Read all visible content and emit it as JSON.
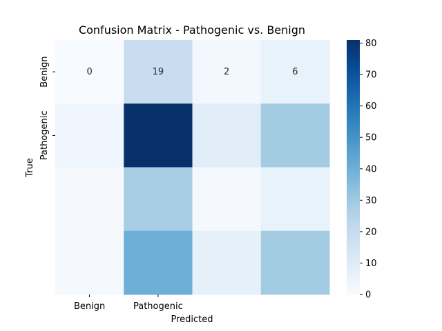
{
  "chart_data": {
    "type": "heatmap",
    "title": "Confusion Matrix - Pathogenic vs. Benign",
    "xlabel": "Predicted",
    "ylabel": "True",
    "x_tick_labels": [
      "Benign",
      "Pathogenic",
      "",
      ""
    ],
    "y_tick_labels": [
      "Benign",
      "Pathogenic",
      "",
      ""
    ],
    "values": [
      [
        0,
        19,
        2,
        6
      ],
      [
        3,
        81,
        9,
        29
      ],
      [
        1,
        28,
        1,
        6
      ],
      [
        1,
        40,
        7,
        29
      ]
    ],
    "annotations": [
      [
        "0",
        "19",
        "2",
        "6"
      ],
      [
        null,
        null,
        null,
        null
      ],
      [
        null,
        null,
        null,
        null
      ],
      [
        null,
        null,
        null,
        null
      ]
    ],
    "colormap": "Blues",
    "color_range": [
      0,
      81
    ],
    "colorbar_ticks": [
      0,
      10,
      20,
      30,
      40,
      50,
      60,
      70,
      80
    ],
    "colors": {
      "low": "#f7fbff",
      "high": "#08306b"
    }
  }
}
